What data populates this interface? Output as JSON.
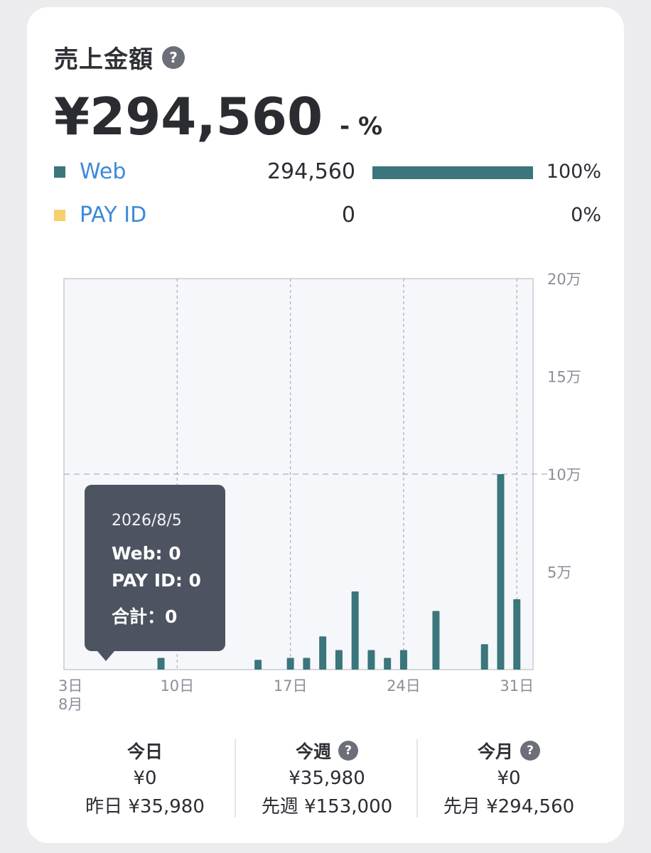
{
  "header": {
    "title": "売上金額",
    "help_icon": "?",
    "amount": "¥294,560",
    "change": "- %"
  },
  "sources": [
    {
      "name": "Web",
      "value": "294,560",
      "share": 1.0,
      "percent": "100%",
      "color": "#3a767c"
    },
    {
      "name": "PAY ID",
      "value": "0",
      "share": 0.0,
      "percent": "0%",
      "color": "#f5d06b"
    }
  ],
  "chart_data": {
    "type": "bar",
    "x_tick_labels": [
      "3日",
      "10日",
      "17日",
      "24日",
      "31日"
    ],
    "x_tick_days": [
      3,
      10,
      17,
      24,
      31
    ],
    "x_month_label": "8月",
    "y_tick_labels": [
      "20万",
      "15万",
      "10万",
      "5万"
    ],
    "y_tick_values": [
      200000,
      150000,
      100000,
      50000
    ],
    "ylim": [
      0,
      200000
    ],
    "xlim": [
      3,
      32
    ],
    "dashed_y_grid": [
      100000
    ],
    "bar_color": "#3a767c",
    "series": [
      {
        "name": "Web",
        "days": [
          9,
          15,
          17,
          18,
          19,
          20,
          21,
          22,
          23,
          24,
          26,
          29,
          30,
          31
        ],
        "values": [
          6000,
          5000,
          6000,
          6000,
          17000,
          10000,
          40000,
          10000,
          6000,
          10000,
          30000,
          13000,
          100000,
          36000
        ]
      }
    ]
  },
  "tooltip": {
    "date": "2026/8/5",
    "web": "Web: 0",
    "payid": "PAY ID: 0",
    "total": "合計：0"
  },
  "stats": [
    {
      "label": "今日",
      "value": "¥0",
      "prev": "昨日 ¥35,980",
      "help": false
    },
    {
      "label": "今週",
      "value": "¥35,980",
      "prev": "先週 ¥153,000",
      "help": true
    },
    {
      "label": "今月",
      "value": "¥0",
      "prev": "先月 ¥294,560",
      "help": true
    }
  ]
}
